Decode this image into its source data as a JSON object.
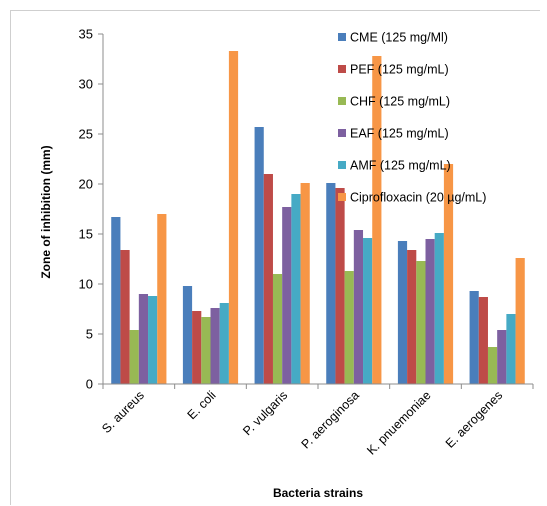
{
  "chart_data": {
    "type": "bar",
    "title": "",
    "xlabel": "Bacteria strains",
    "ylabel": "Zone of inhibition (mm)",
    "ylim": [
      0,
      35
    ],
    "yticks": [
      "0",
      "5",
      "10",
      "15",
      "20",
      "25",
      "30",
      "35"
    ],
    "grid": false,
    "legend_position": "top-right",
    "categories": [
      "S. aureus",
      "E. coli",
      "P. vulgaris",
      "P. aeroginosa",
      "K. pnuemoniae",
      "E. aerogenes"
    ],
    "series": [
      {
        "name": "CME (125 mg/Ml)",
        "color": "#4a7ebb",
        "values": [
          16.7,
          9.8,
          25.7,
          20.1,
          14.3,
          9.3
        ]
      },
      {
        "name": "PEF (125 mg/mL)",
        "color": "#be4b48",
        "values": [
          13.4,
          7.3,
          21.0,
          19.6,
          13.4,
          8.7
        ]
      },
      {
        "name": "CHF (125 mg/mL)",
        "color": "#98b954",
        "values": [
          5.4,
          6.7,
          11.0,
          11.3,
          12.3,
          3.7
        ]
      },
      {
        "name": "EAF (125 mg/mL)",
        "color": "#7d60a0",
        "values": [
          9.0,
          7.6,
          17.7,
          15.4,
          14.5,
          5.4
        ]
      },
      {
        "name": "AMF (125 mg/mL)",
        "color": "#46aac5",
        "values": [
          8.8,
          8.1,
          19.0,
          14.6,
          15.1,
          7.0
        ]
      },
      {
        "name": "Ciprofloxacin (20 µg/mL)",
        "color": "#f79646",
        "values": [
          17.0,
          33.3,
          20.1,
          32.8,
          22.0,
          12.6
        ]
      }
    ]
  }
}
